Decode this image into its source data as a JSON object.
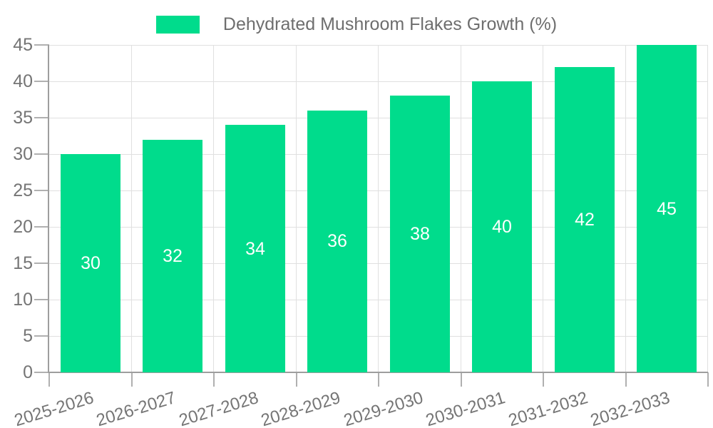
{
  "legend": {
    "label": "Dehydrated Mushroom Flakes Growth (%)"
  },
  "chart_data": {
    "type": "bar",
    "title": "",
    "categories": [
      "2025-2026",
      "2026-2027",
      "2027-2028",
      "2028-2029",
      "2029-2030",
      "2030-2031",
      "2031-2032",
      "2032-2033"
    ],
    "series": [
      {
        "name": "Dehydrated Mushroom Flakes Growth (%)",
        "values": [
          30,
          32,
          34,
          36,
          38,
          40,
          42,
          45
        ]
      }
    ],
    "data_labels": [
      "30",
      "32",
      "34",
      "36",
      "38",
      "40",
      "42",
      "45"
    ],
    "xlabel": "",
    "ylabel": "",
    "ylim": [
      0,
      45
    ],
    "yticks": [
      0,
      5,
      10,
      15,
      20,
      25,
      30,
      35,
      40,
      45
    ],
    "grid": true,
    "legend_position": "top-center",
    "colors": {
      "bar": "#00DC8C",
      "bar_label_text": "#FFFFFF",
      "axis_line": "#9E9E9E",
      "gridline": "#E0E0E0",
      "tick_mark": "#B0B0B0",
      "tick_text": "#757575",
      "legend_text": "#6E6E6E",
      "background": "#FFFFFF"
    }
  }
}
